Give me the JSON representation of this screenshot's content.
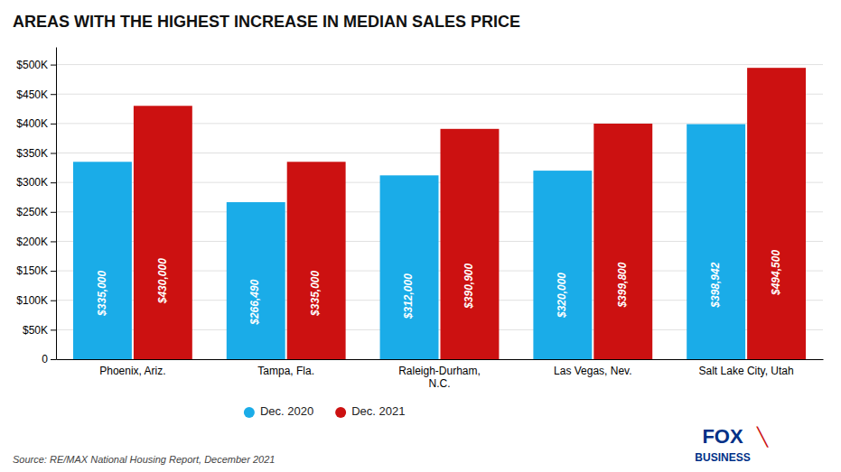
{
  "chart_data": {
    "type": "bar",
    "title": "AREAS WITH THE HIGHEST INCREASE IN MEDIAN SALES PRICE",
    "categories": [
      "Phoenix, Ariz.",
      "Tampa, Fla.",
      "Raleigh-Durham,\nN.C.",
      "Las Vegas, Nev.",
      "Salt Lake City, Utah"
    ],
    "series": [
      {
        "name": "Dec. 2020",
        "color": "#1AACE8",
        "values": [
          335000,
          266490,
          312000,
          320000,
          398942
        ],
        "value_labels": [
          "$335,000",
          "$266,490",
          "$312,000",
          "$320,000",
          "$398,942"
        ]
      },
      {
        "name": "Dec. 2021",
        "color": "#CC1111",
        "values": [
          430000,
          335000,
          390900,
          399800,
          494500
        ],
        "value_labels": [
          "$430,000",
          "$335,000",
          "$390,900",
          "$399,800",
          "$494,500"
        ]
      }
    ],
    "ylim": [
      0,
      530000
    ],
    "yticks": [
      0,
      {
        "value": 50000,
        "label": "$50K"
      },
      {
        "value": 100000,
        "label": "$100K"
      },
      {
        "value": 150000,
        "label": "$150K"
      },
      {
        "value": 200000,
        "label": "$200K"
      },
      {
        "value": 250000,
        "label": "$250K"
      },
      {
        "value": 300000,
        "label": "$300K"
      },
      {
        "value": 350000,
        "label": "$350K"
      },
      {
        "value": 400000,
        "label": "$400K"
      },
      {
        "value": 450000,
        "label": "$450K"
      },
      {
        "value": 500000,
        "label": "$500K"
      }
    ],
    "grid": true,
    "legend": "bottom",
    "data_labels": true,
    "annotations": [
      "Source: RE/MAX National Housing Report, December 2021",
      "FOX",
      "╲",
      "BUSINESS"
    ]
  }
}
